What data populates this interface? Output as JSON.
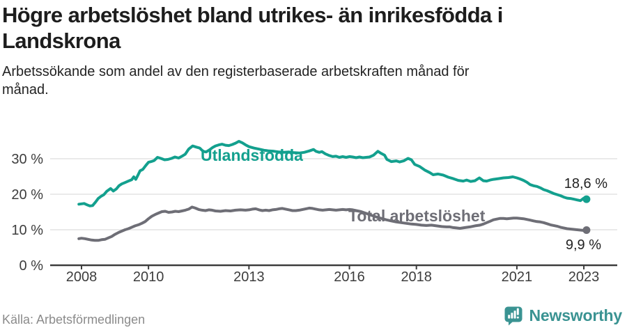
{
  "header": {
    "title": "Högre arbetslöshet bland utrikes- än inrikesfödda i Landskrona",
    "subtitle": "Arbetssökande som andel av den registerbaserade arbetskraften månad för månad."
  },
  "footer": {
    "source": "Källa: Arbetsförmedlingen",
    "brand": "Newsworthy"
  },
  "colors": {
    "accent_teal": "#13a08e",
    "line_gray": "#6e6e76",
    "brand_teal": "#3a9392",
    "grid": "#dedede",
    "axis": "#3d3d3d",
    "title_text": "#1d1d1d",
    "muted_text": "#8b8b8b"
  },
  "chart_data": {
    "type": "line",
    "x_unit": "decimal_year",
    "ylim": [
      0,
      36
    ],
    "grid": true,
    "yticks": [
      {
        "value": 0,
        "label": "0 %"
      },
      {
        "value": 10,
        "label": "10 %"
      },
      {
        "value": 20,
        "label": "20 %"
      },
      {
        "value": 30,
        "label": "30 %"
      }
    ],
    "xticks": [
      {
        "value": 2008,
        "label": "2008"
      },
      {
        "value": 2010,
        "label": "2010"
      },
      {
        "value": 2013,
        "label": "2013"
      },
      {
        "value": 2016,
        "label": "2016"
      },
      {
        "value": 2018,
        "label": "2018"
      },
      {
        "value": 2021,
        "label": "2021"
      },
      {
        "value": 2023,
        "label": "2023"
      }
    ],
    "series": [
      {
        "name": "Utlandsfödda",
        "color": "#13a08e",
        "end_value": 18.6,
        "end_label": "18,6 %",
        "points": [
          [
            2007.92,
            17.2
          ],
          [
            2008.0,
            17.3
          ],
          [
            2008.08,
            17.4
          ],
          [
            2008.17,
            17.0
          ],
          [
            2008.25,
            16.7
          ],
          [
            2008.33,
            16.8
          ],
          [
            2008.42,
            17.8
          ],
          [
            2008.5,
            18.8
          ],
          [
            2008.58,
            19.4
          ],
          [
            2008.67,
            19.9
          ],
          [
            2008.75,
            20.8
          ],
          [
            2008.87,
            21.6
          ],
          [
            2008.95,
            20.9
          ],
          [
            2009.04,
            21.5
          ],
          [
            2009.12,
            22.4
          ],
          [
            2009.2,
            22.9
          ],
          [
            2009.3,
            23.3
          ],
          [
            2009.4,
            23.7
          ],
          [
            2009.5,
            24.1
          ],
          [
            2009.56,
            24.9
          ],
          [
            2009.62,
            24.2
          ],
          [
            2009.68,
            25.3
          ],
          [
            2009.75,
            26.6
          ],
          [
            2009.83,
            27.0
          ],
          [
            2009.92,
            28.1
          ],
          [
            2010.0,
            29.0
          ],
          [
            2010.08,
            29.2
          ],
          [
            2010.17,
            29.5
          ],
          [
            2010.27,
            30.4
          ],
          [
            2010.37,
            30.1
          ],
          [
            2010.48,
            29.7
          ],
          [
            2010.58,
            29.8
          ],
          [
            2010.69,
            30.1
          ],
          [
            2010.79,
            30.5
          ],
          [
            2010.9,
            30.2
          ],
          [
            2011.0,
            30.7
          ],
          [
            2011.1,
            31.3
          ],
          [
            2011.2,
            32.7
          ],
          [
            2011.32,
            33.6
          ],
          [
            2011.42,
            33.3
          ],
          [
            2011.53,
            33.0
          ],
          [
            2011.63,
            32.1
          ],
          [
            2011.72,
            31.9
          ],
          [
            2011.82,
            32.5
          ],
          [
            2011.92,
            33.2
          ],
          [
            2012.0,
            33.6
          ],
          [
            2012.1,
            33.9
          ],
          [
            2012.2,
            34.1
          ],
          [
            2012.3,
            33.8
          ],
          [
            2012.4,
            33.7
          ],
          [
            2012.5,
            34.0
          ],
          [
            2012.6,
            34.4
          ],
          [
            2012.7,
            34.9
          ],
          [
            2012.8,
            34.5
          ],
          [
            2012.9,
            33.9
          ],
          [
            2013.0,
            33.4
          ],
          [
            2013.15,
            33.0
          ],
          [
            2013.3,
            32.7
          ],
          [
            2013.45,
            32.4
          ],
          [
            2013.6,
            32.2
          ],
          [
            2013.75,
            32.1
          ],
          [
            2013.9,
            31.9
          ],
          [
            2014.05,
            31.8
          ],
          [
            2014.2,
            31.9
          ],
          [
            2014.35,
            31.7
          ],
          [
            2014.5,
            31.6
          ],
          [
            2014.65,
            31.8
          ],
          [
            2014.8,
            32.2
          ],
          [
            2014.93,
            32.6
          ],
          [
            2015.0,
            32.1
          ],
          [
            2015.1,
            31.8
          ],
          [
            2015.18,
            32.0
          ],
          [
            2015.28,
            31.4
          ],
          [
            2015.4,
            30.9
          ],
          [
            2015.5,
            30.6
          ],
          [
            2015.6,
            30.7
          ],
          [
            2015.7,
            30.4
          ],
          [
            2015.8,
            30.6
          ],
          [
            2015.9,
            30.4
          ],
          [
            2016.0,
            30.6
          ],
          [
            2016.1,
            30.5
          ],
          [
            2016.2,
            30.3
          ],
          [
            2016.3,
            30.5
          ],
          [
            2016.4,
            30.3
          ],
          [
            2016.5,
            30.4
          ],
          [
            2016.6,
            30.5
          ],
          [
            2016.72,
            31.0
          ],
          [
            2016.85,
            32.1
          ],
          [
            2016.95,
            31.5
          ],
          [
            2017.05,
            31.0
          ],
          [
            2017.12,
            29.8
          ],
          [
            2017.25,
            29.2
          ],
          [
            2017.4,
            29.4
          ],
          [
            2017.5,
            29.1
          ],
          [
            2017.62,
            29.4
          ],
          [
            2017.75,
            30.1
          ],
          [
            2017.85,
            29.7
          ],
          [
            2017.95,
            28.4
          ],
          [
            2018.1,
            27.8
          ],
          [
            2018.25,
            26.8
          ],
          [
            2018.4,
            26.1
          ],
          [
            2018.5,
            25.5
          ],
          [
            2018.65,
            25.7
          ],
          [
            2018.8,
            25.4
          ],
          [
            2018.95,
            24.8
          ],
          [
            2019.1,
            24.4
          ],
          [
            2019.25,
            23.9
          ],
          [
            2019.4,
            23.7
          ],
          [
            2019.5,
            24.0
          ],
          [
            2019.62,
            23.6
          ],
          [
            2019.75,
            23.8
          ],
          [
            2019.88,
            24.6
          ],
          [
            2020.0,
            23.8
          ],
          [
            2020.1,
            23.7
          ],
          [
            2020.2,
            24.0
          ],
          [
            2020.3,
            24.2
          ],
          [
            2020.45,
            24.4
          ],
          [
            2020.6,
            24.6
          ],
          [
            2020.75,
            24.7
          ],
          [
            2020.88,
            24.9
          ],
          [
            2021.0,
            24.6
          ],
          [
            2021.1,
            24.3
          ],
          [
            2021.2,
            23.9
          ],
          [
            2021.3,
            23.4
          ],
          [
            2021.4,
            22.7
          ],
          [
            2021.5,
            22.4
          ],
          [
            2021.6,
            22.2
          ],
          [
            2021.7,
            21.8
          ],
          [
            2021.8,
            21.3
          ],
          [
            2021.9,
            21.0
          ],
          [
            2022.0,
            20.6
          ],
          [
            2022.1,
            20.2
          ],
          [
            2022.2,
            19.9
          ],
          [
            2022.3,
            19.6
          ],
          [
            2022.4,
            19.2
          ],
          [
            2022.5,
            18.9
          ],
          [
            2022.6,
            18.8
          ],
          [
            2022.7,
            18.6
          ],
          [
            2022.8,
            18.4
          ],
          [
            2022.9,
            18.2
          ],
          [
            2023.0,
            18.9
          ],
          [
            2023.08,
            18.6
          ]
        ]
      },
      {
        "name": "Total arbetslöshet",
        "color": "#6e6e76",
        "end_value": 9.9,
        "end_label": "9,9 %",
        "points": [
          [
            2007.92,
            7.5
          ],
          [
            2008.0,
            7.6
          ],
          [
            2008.1,
            7.5
          ],
          [
            2008.2,
            7.3
          ],
          [
            2008.3,
            7.1
          ],
          [
            2008.4,
            7.0
          ],
          [
            2008.5,
            7.0
          ],
          [
            2008.6,
            7.2
          ],
          [
            2008.7,
            7.3
          ],
          [
            2008.8,
            7.7
          ],
          [
            2008.9,
            8.1
          ],
          [
            2009.0,
            8.7
          ],
          [
            2009.1,
            9.2
          ],
          [
            2009.2,
            9.6
          ],
          [
            2009.3,
            10.0
          ],
          [
            2009.4,
            10.3
          ],
          [
            2009.5,
            10.7
          ],
          [
            2009.6,
            11.1
          ],
          [
            2009.7,
            11.4
          ],
          [
            2009.8,
            11.8
          ],
          [
            2009.9,
            12.3
          ],
          [
            2010.0,
            13.1
          ],
          [
            2010.1,
            13.8
          ],
          [
            2010.2,
            14.3
          ],
          [
            2010.3,
            14.7
          ],
          [
            2010.4,
            15.1
          ],
          [
            2010.5,
            15.2
          ],
          [
            2010.6,
            14.9
          ],
          [
            2010.7,
            15.0
          ],
          [
            2010.8,
            15.2
          ],
          [
            2010.9,
            15.1
          ],
          [
            2011.0,
            15.3
          ],
          [
            2011.1,
            15.5
          ],
          [
            2011.2,
            15.8
          ],
          [
            2011.3,
            16.4
          ],
          [
            2011.4,
            16.1
          ],
          [
            2011.5,
            15.7
          ],
          [
            2011.6,
            15.5
          ],
          [
            2011.7,
            15.4
          ],
          [
            2011.8,
            15.6
          ],
          [
            2011.9,
            15.5
          ],
          [
            2012.0,
            15.3
          ],
          [
            2012.15,
            15.2
          ],
          [
            2012.3,
            15.4
          ],
          [
            2012.45,
            15.3
          ],
          [
            2012.6,
            15.5
          ],
          [
            2012.75,
            15.6
          ],
          [
            2012.9,
            15.5
          ],
          [
            2013.0,
            15.6
          ],
          [
            2013.1,
            15.8
          ],
          [
            2013.2,
            15.9
          ],
          [
            2013.3,
            15.6
          ],
          [
            2013.4,
            15.4
          ],
          [
            2013.5,
            15.5
          ],
          [
            2013.6,
            15.4
          ],
          [
            2013.7,
            15.6
          ],
          [
            2013.8,
            15.7
          ],
          [
            2013.9,
            15.9
          ],
          [
            2014.0,
            16.0
          ],
          [
            2014.1,
            15.8
          ],
          [
            2014.2,
            15.6
          ],
          [
            2014.3,
            15.4
          ],
          [
            2014.4,
            15.4
          ],
          [
            2014.5,
            15.5
          ],
          [
            2014.6,
            15.7
          ],
          [
            2014.7,
            15.9
          ],
          [
            2014.8,
            16.1
          ],
          [
            2014.9,
            16.0
          ],
          [
            2015.0,
            15.8
          ],
          [
            2015.1,
            15.6
          ],
          [
            2015.2,
            15.5
          ],
          [
            2015.3,
            15.6
          ],
          [
            2015.4,
            15.7
          ],
          [
            2015.5,
            15.6
          ],
          [
            2015.6,
            15.5
          ],
          [
            2015.7,
            15.6
          ],
          [
            2015.8,
            15.7
          ],
          [
            2015.9,
            15.6
          ],
          [
            2016.0,
            15.7
          ],
          [
            2016.1,
            15.6
          ],
          [
            2016.2,
            15.4
          ],
          [
            2016.35,
            15.1
          ],
          [
            2016.5,
            14.6
          ],
          [
            2016.65,
            14.1
          ],
          [
            2016.8,
            13.6
          ],
          [
            2016.95,
            13.2
          ],
          [
            2017.1,
            12.8
          ],
          [
            2017.25,
            12.5
          ],
          [
            2017.4,
            12.2
          ],
          [
            2017.55,
            12.0
          ],
          [
            2017.7,
            11.8
          ],
          [
            2017.85,
            11.6
          ],
          [
            2018.0,
            11.5
          ],
          [
            2018.15,
            11.3
          ],
          [
            2018.3,
            11.2
          ],
          [
            2018.45,
            11.3
          ],
          [
            2018.6,
            11.1
          ],
          [
            2018.75,
            10.9
          ],
          [
            2018.9,
            10.8
          ],
          [
            2019.0,
            10.8
          ],
          [
            2019.1,
            10.6
          ],
          [
            2019.2,
            10.5
          ],
          [
            2019.3,
            10.4
          ],
          [
            2019.45,
            10.6
          ],
          [
            2019.6,
            10.8
          ],
          [
            2019.75,
            11.1
          ],
          [
            2019.9,
            11.3
          ],
          [
            2020.0,
            11.6
          ],
          [
            2020.1,
            12.0
          ],
          [
            2020.2,
            12.4
          ],
          [
            2020.3,
            12.8
          ],
          [
            2020.4,
            13.0
          ],
          [
            2020.5,
            13.2
          ],
          [
            2020.6,
            13.2
          ],
          [
            2020.7,
            13.1
          ],
          [
            2020.8,
            13.2
          ],
          [
            2020.9,
            13.3
          ],
          [
            2021.0,
            13.3
          ],
          [
            2021.1,
            13.2
          ],
          [
            2021.2,
            13.1
          ],
          [
            2021.3,
            12.9
          ],
          [
            2021.4,
            12.7
          ],
          [
            2021.5,
            12.5
          ],
          [
            2021.6,
            12.3
          ],
          [
            2021.7,
            12.2
          ],
          [
            2021.8,
            12.0
          ],
          [
            2021.9,
            11.7
          ],
          [
            2022.0,
            11.4
          ],
          [
            2022.1,
            11.2
          ],
          [
            2022.2,
            11.0
          ],
          [
            2022.3,
            10.7
          ],
          [
            2022.4,
            10.5
          ],
          [
            2022.5,
            10.3
          ],
          [
            2022.6,
            10.2
          ],
          [
            2022.7,
            10.1
          ],
          [
            2022.8,
            10.0
          ],
          [
            2022.9,
            9.9
          ],
          [
            2023.0,
            9.8
          ],
          [
            2023.08,
            9.9
          ]
        ]
      }
    ]
  }
}
